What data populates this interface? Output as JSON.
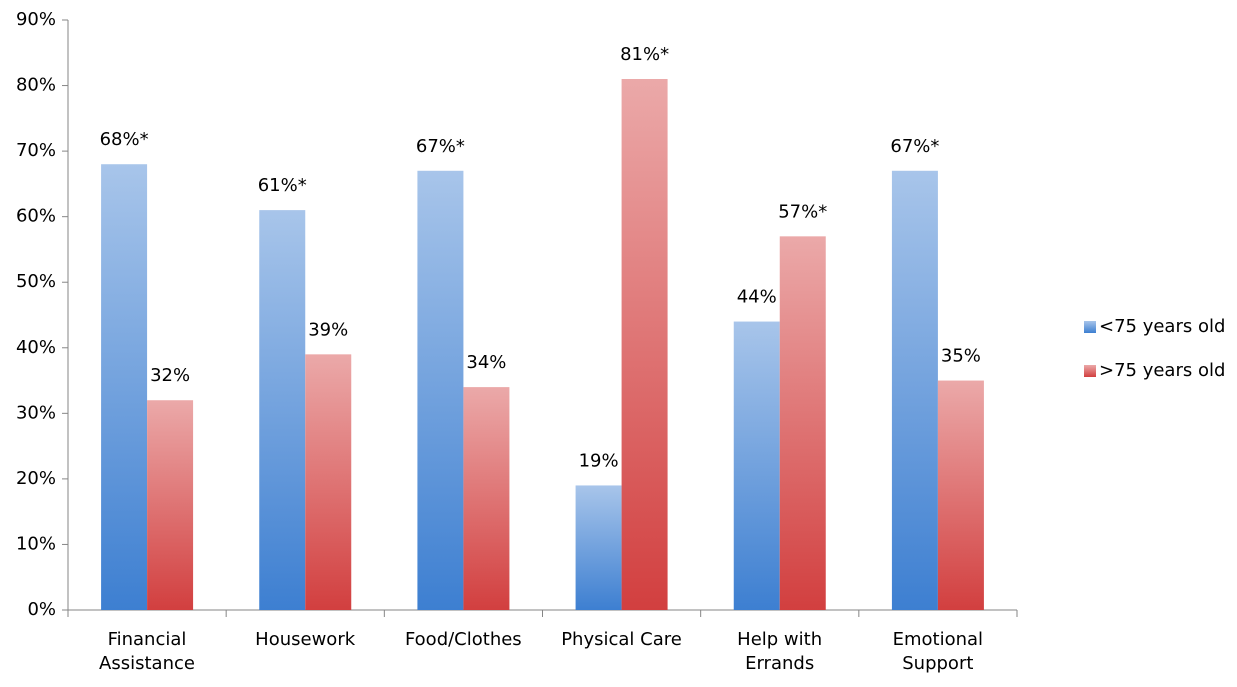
{
  "chart_data": {
    "type": "bar",
    "categories": [
      "Financial\nAssistance",
      "Housework",
      "Food/Clothes",
      "Physical Care",
      "Help with\nErrands",
      "Emotional\nSupport"
    ],
    "series": [
      {
        "name": "<75 years old",
        "color": "#3d7fd1",
        "values": [
          68,
          61,
          67,
          19,
          44,
          67
        ],
        "value_labels": [
          "68%*",
          "61%*",
          "67%*",
          "19%",
          "44%",
          "67%*"
        ]
      },
      {
        "name": ">75 years old",
        "color": "#d23f3f",
        "values": [
          32,
          39,
          34,
          81,
          57,
          35
        ],
        "value_labels": [
          "32%",
          "39%",
          "34%",
          "81%*",
          "57%*",
          "35%"
        ]
      }
    ],
    "ylim": [
      0,
      90
    ],
    "yticks": [
      {
        "value": 0,
        "label": "0%"
      },
      {
        "value": 10,
        "label": "10%"
      },
      {
        "value": 20,
        "label": "20%"
      },
      {
        "value": 30,
        "label": "30%"
      },
      {
        "value": 40,
        "label": "40%"
      },
      {
        "value": 50,
        "label": "50%"
      },
      {
        "value": 60,
        "label": "60%"
      },
      {
        "value": 70,
        "label": "70%"
      },
      {
        "value": 80,
        "label": "80%"
      },
      {
        "value": 90,
        "label": "90%"
      }
    ],
    "grid": false,
    "legend": "right"
  }
}
